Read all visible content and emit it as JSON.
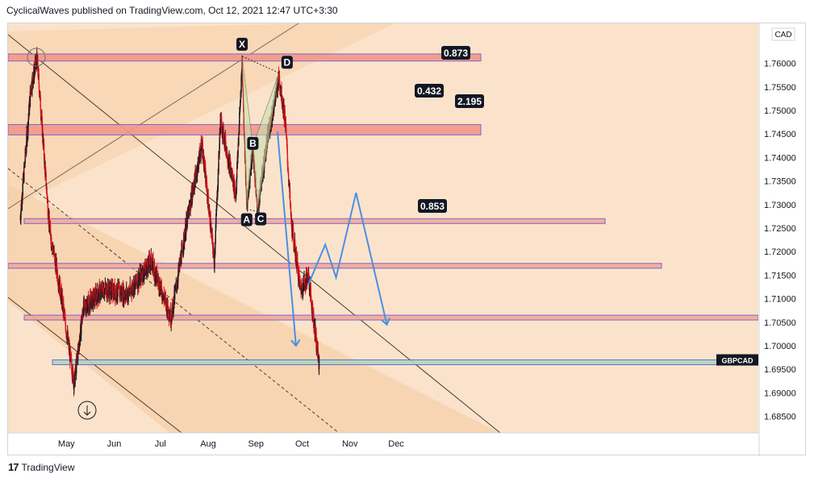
{
  "header": {
    "text": "CyclicalWaves published on TradingView.com, Oct 12, 2021 12:47 UTC+3:30"
  },
  "footer": {
    "logo": "17",
    "brand": "TradingView"
  },
  "colors": {
    "background": "#fbe3cb",
    "candle_up": "#131722",
    "candle_down": "#e0161b",
    "zone_red": "#f4978b",
    "zone_border": "#6a5acd",
    "zone_green": "#a8d8c0",
    "projection": "#4a90e2",
    "harmonic_fill": "#c8e0b0"
  },
  "chart_data": {
    "type": "candlestick",
    "symbol": "GBPCAD",
    "currency": "CAD",
    "x_tick_labels": [
      "May",
      "Jun",
      "Jul",
      "Aug",
      "Sep",
      "Oct",
      "Nov",
      "Dec"
    ],
    "y_tick_labels": [
      "1.76000",
      "1.75500",
      "1.75000",
      "1.74500",
      "1.74000",
      "1.73500",
      "1.73000",
      "1.72500",
      "1.72000",
      "1.71500",
      "1.71000",
      "1.70500",
      "1.70000",
      "1.69500",
      "1.69000",
      "1.68500"
    ],
    "y_range": [
      1.6815,
      1.7685
    ],
    "last_price_label": "GBPCAD",
    "harmonic_pattern": {
      "points": [
        {
          "label": "X",
          "date": "2021-08-23",
          "price": 1.7615
        },
        {
          "label": "A",
          "date": "2021-08-26",
          "price": 1.729
        },
        {
          "label": "B",
          "date": "2021-08-30",
          "price": 1.7425
        },
        {
          "label": "C",
          "date": "2021-09-02",
          "price": 1.7285
        },
        {
          "label": "D",
          "date": "2021-09-16",
          "price": 1.758
        }
      ],
      "ratios": [
        "0.873",
        "0.432",
        "2.195",
        "0.853"
      ]
    },
    "zones": [
      {
        "kind": "resistance",
        "top": 1.762,
        "bottom": 1.7605
      },
      {
        "kind": "resistance",
        "top": 1.747,
        "bottom": 1.7448
      },
      {
        "kind": "level",
        "top": 1.727,
        "bottom": 1.7262
      },
      {
        "kind": "level",
        "top": 1.7175,
        "bottom": 1.7165
      },
      {
        "kind": "level",
        "top": 1.7065,
        "bottom": 1.7055
      },
      {
        "kind": "support",
        "top": 1.697,
        "bottom": 1.6962
      }
    ],
    "projection_paths": [
      {
        "points": [
          {
            "date": "2021-09-15",
            "price": 1.7455
          },
          {
            "date": "2021-09-27",
            "price": 1.7
          }
        ]
      },
      {
        "points": [
          {
            "date": "2021-10-05",
            "price": 1.713
          },
          {
            "date": "2021-10-16",
            "price": 1.7215
          },
          {
            "date": "2021-10-23",
            "price": 1.7145
          },
          {
            "date": "2021-11-05",
            "price": 1.7325
          },
          {
            "date": "2021-11-25",
            "price": 1.7045
          }
        ]
      }
    ]
  }
}
